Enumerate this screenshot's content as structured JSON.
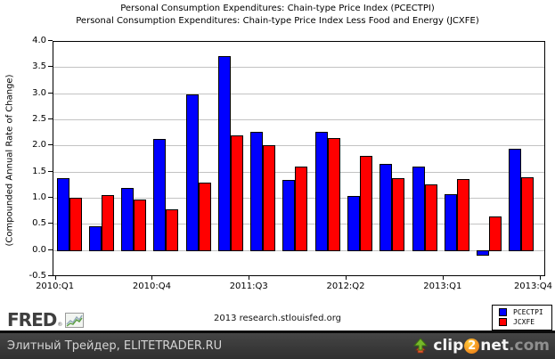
{
  "titles": {
    "line1": "Personal Consumption Expenditures: Chain-type Price Index (PCECTPI)",
    "line2": "Personal Consumption Expenditures: Chain-type Price Index Less Food and Energy (JCXFE)"
  },
  "y_axis_label": "(Compounded Annual Rate of Change)",
  "chart_data": {
    "type": "bar",
    "title": "Personal Consumption Expenditures: Chain-type Price Index (PCECTPI) / Less Food and Energy (JCXFE)",
    "ylabel": "(Compounded Annual Rate of Change)",
    "xlabel": "",
    "grid": true,
    "legend_position": "bottom-right",
    "ylim": [
      -0.5,
      4.0
    ],
    "yticks": [
      4.0,
      3.5,
      3.0,
      2.5,
      2.0,
      1.5,
      1.0,
      0.5,
      0.0,
      -0.5
    ],
    "categories": [
      "2010:Q1",
      "2010:Q2",
      "2010:Q3",
      "2010:Q4",
      "2011:Q1",
      "2011:Q2",
      "2011:Q3",
      "2011:Q4",
      "2012:Q1",
      "2012:Q2",
      "2012:Q3",
      "2012:Q4",
      "2013:Q1",
      "2013:Q2",
      "2013:Q3"
    ],
    "series": [
      {
        "name": "PCECTPI",
        "color": "#0000ff",
        "values": [
          1.4,
          0.47,
          1.2,
          2.15,
          3.0,
          3.72,
          2.28,
          1.35,
          2.27,
          1.05,
          1.67,
          1.61,
          1.08,
          -0.1,
          1.95
        ]
      },
      {
        "name": "JCXFE",
        "color": "#ff0000",
        "values": [
          1.02,
          1.07,
          0.98,
          0.8,
          1.3,
          2.21,
          2.02,
          1.61,
          2.16,
          1.82,
          1.4,
          1.27,
          1.37,
          0.66,
          1.41
        ]
      }
    ],
    "xticks": [
      {
        "label": "2010:Q1",
        "quarter_index": 0
      },
      {
        "label": "2010:Q4",
        "quarter_index": 3
      },
      {
        "label": "2011:Q3",
        "quarter_index": 6
      },
      {
        "label": "2012:Q2",
        "quarter_index": 9
      },
      {
        "label": "2013:Q1",
        "quarter_index": 12
      },
      {
        "label": "2013:Q4",
        "quarter_index": 15
      }
    ]
  },
  "footer": {
    "fred_logo": "FRED",
    "fred_reg": "®",
    "source": "2013 research.stlouisfed.org"
  },
  "banner": {
    "left_text": "Элитный Трейдер, ELITETRADER.RU",
    "clip2net": {
      "clip": "clip",
      "two": "2",
      "net": "net",
      "com": ".com"
    }
  },
  "colors": {
    "pcectpi_bar": "#0000ff",
    "jcxfe_bar": "#ff0000",
    "gridline": "#c3c3c3",
    "banner_bg": "#3a3a3a",
    "banner_text": "#d4d4d4",
    "clip2net_orange": "#f08b1d",
    "clip2net_green": "#76b82a",
    "fred_text": "#3f3f3f"
  }
}
